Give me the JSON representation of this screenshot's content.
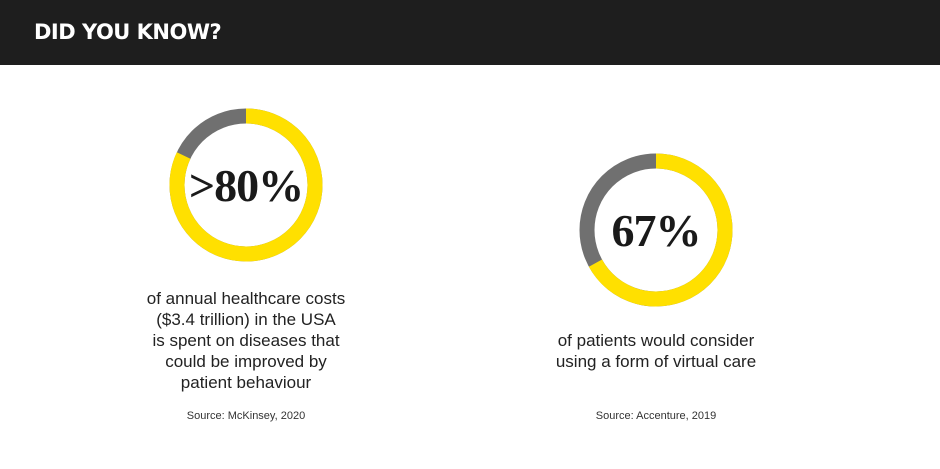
{
  "header": {
    "title": "DID YOU KNOW?"
  },
  "colors": {
    "accent": "#ffe000",
    "remainder": "#707070",
    "header_bg": "#1e1e1e"
  },
  "stats": [
    {
      "value": ">80%",
      "fraction": 0.82,
      "description": [
        "of annual healthcare costs",
        "($3.4 trillion) in the USA",
        "is spent on diseases that",
        "could be improved by",
        "patient behaviour"
      ],
      "source": "Source: McKinsey, 2020"
    },
    {
      "value": "67%",
      "fraction": 0.67,
      "description": [
        "of patients would consider",
        "using a form of virtual care"
      ],
      "source": "Source: Accenture, 2019"
    }
  ]
}
